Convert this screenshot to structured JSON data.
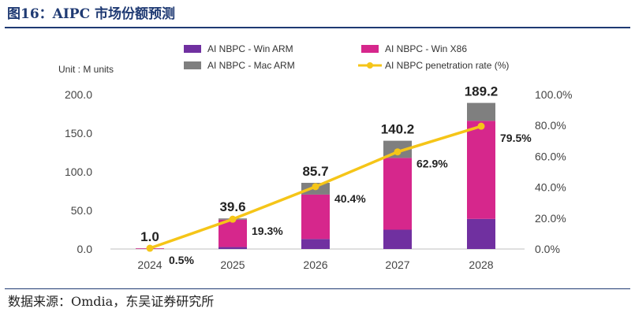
{
  "figure": {
    "title": "图16：AIPC 市场份额预测",
    "source": "数据来源：Omdia，东吴证券研究所"
  },
  "chart_data": {
    "type": "bar",
    "stacked": true,
    "categories": [
      "2024",
      "2025",
      "2026",
      "2027",
      "2028"
    ],
    "unit_label": "Unit : M units",
    "series": [
      {
        "name": "AI NBPC - Win ARM",
        "color": "#7030a0",
        "values": [
          0.1,
          2.5,
          13.0,
          25.0,
          39.0
        ]
      },
      {
        "name": "AI NBPC - Win X86",
        "color": "#d6278c",
        "values": [
          0.8,
          35.5,
          57.5,
          93.0,
          127.0
        ]
      },
      {
        "name": "AI NBPC - Mac ARM",
        "color": "#7f7f7f",
        "values": [
          0.1,
          1.6,
          15.2,
          22.2,
          23.2
        ]
      }
    ],
    "totals": [
      1.0,
      39.6,
      85.7,
      140.2,
      189.2
    ],
    "total_labels": [
      "1.0",
      "39.6",
      "85.7",
      "140.2",
      "189.2"
    ],
    "line_series": {
      "name": "AI NBPC penetration rate (%)",
      "color": "#f5c518",
      "values": [
        0.5,
        19.3,
        40.4,
        62.9,
        79.5
      ],
      "labels": [
        "0.5%",
        "19.3%",
        "40.4%",
        "62.9%",
        "79.5%"
      ]
    },
    "y_left": {
      "min": 0,
      "max": 200,
      "ticks": [
        0,
        50,
        100,
        150,
        200
      ],
      "tick_labels": [
        "0.0",
        "50.0",
        "100.0",
        "150.0",
        "200.0"
      ]
    },
    "y_right": {
      "min": 0,
      "max": 100,
      "ticks": [
        0,
        20,
        40,
        60,
        80,
        100
      ],
      "tick_labels": [
        "0.0%",
        "20.0%",
        "40.0%",
        "60.0%",
        "80.0%",
        "100.0%"
      ]
    },
    "legend_position": "top",
    "grid": false
  }
}
